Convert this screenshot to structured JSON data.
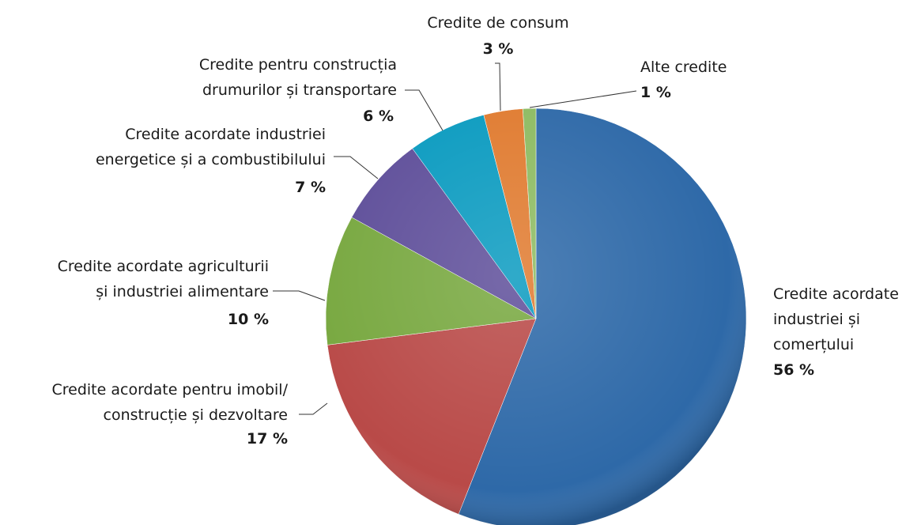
{
  "chart_data": {
    "type": "pie",
    "categories": [
      "Credite acordate\nindustriei și\ncomerțului",
      "Credite acordate pentru imobil/\nconstrucție și dezvoltare",
      "Credite acordate agriculturii\nși industriei alimentare",
      "Credite acordate industriei\nenergetice și a combustibilului",
      "Credite pentru construcția\ndrumurilor și transportare",
      "Credite de consum",
      "Alte credite"
    ],
    "values": [
      56,
      17,
      10,
      7,
      6,
      3,
      1
    ],
    "value_labels": [
      "56 %",
      "17 %",
      "10 %",
      "7 %",
      "6 %",
      "3 %",
      "1 %"
    ],
    "colors": [
      "#2e69a8",
      "#b94a48",
      "#78a840",
      "#5f4f9a",
      "#0b9bc0",
      "#e07b30",
      "#8dbb62"
    ]
  }
}
